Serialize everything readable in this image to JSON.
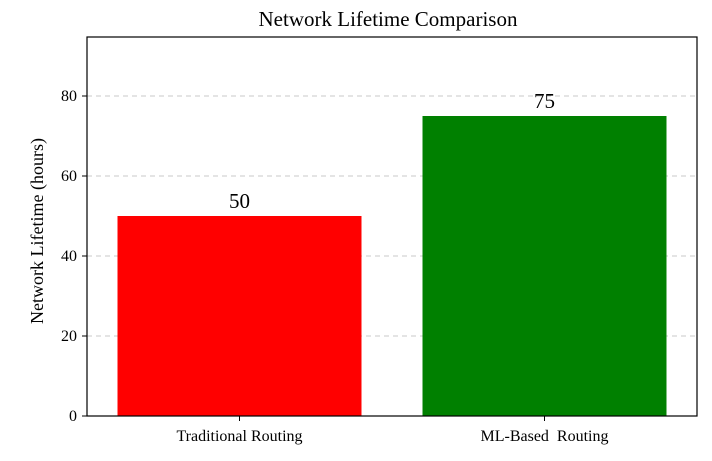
{
  "chart_data": {
    "type": "bar",
    "title": "Network Lifetime Comparison",
    "ylabel": "Network Lifetime (hours)",
    "categories": [
      "Traditional Routing",
      "ML-Based  Routing"
    ],
    "values": [
      50,
      75
    ],
    "data_labels": [
      "50",
      "75"
    ],
    "bar_colors": [
      "#ff0000",
      "#008000"
    ],
    "ylim": [
      0,
      80
    ],
    "yticks": [
      0,
      20,
      40,
      60,
      80
    ],
    "ytick_labels": [
      "0",
      "20",
      "40",
      "60",
      "80"
    ],
    "grid": "horizontal dashed",
    "legend": "none"
  }
}
